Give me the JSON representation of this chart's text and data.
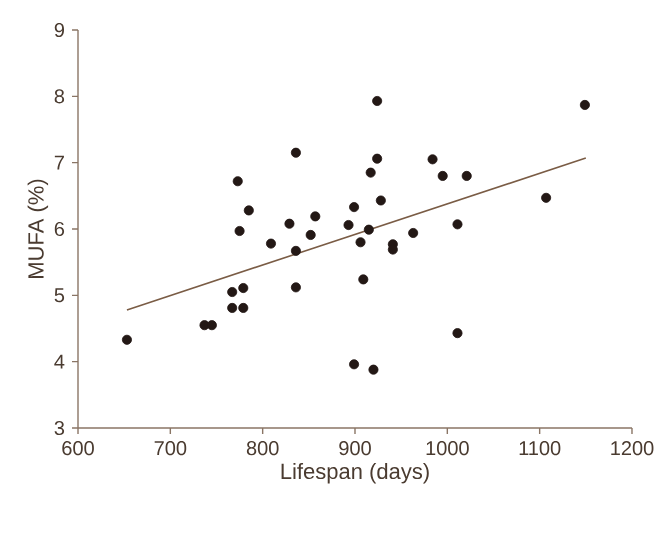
{
  "chart_data": {
    "type": "scatter",
    "xlabel": "Lifespan (days)",
    "ylabel": "MUFA (%)",
    "xlim": [
      600,
      1200
    ],
    "xticks": [
      600,
      700,
      800,
      900,
      1000,
      1100,
      1200
    ],
    "ylim": [
      3,
      9
    ],
    "yticks": [
      3,
      4,
      5,
      6,
      7,
      8,
      9
    ],
    "grid": false,
    "marker": "circle",
    "series": [
      {
        "color": "#231815",
        "x": [
          653,
          737,
          745,
          767,
          779,
          767,
          779,
          773,
          775,
          785,
          809,
          829,
          836,
          836,
          836,
          852,
          857,
          893,
          899,
          906,
          915,
          909,
          899,
          920,
          917,
          924,
          924,
          928,
          941,
          941,
          963,
          984,
          995,
          1021,
          1011,
          1011,
          1107,
          1149
        ],
        "values": [
          4.33,
          4.55,
          4.55,
          5.05,
          5.11,
          4.81,
          4.81,
          6.72,
          5.97,
          6.28,
          5.78,
          6.08,
          7.15,
          5.67,
          5.12,
          5.91,
          6.19,
          6.06,
          6.33,
          5.8,
          5.99,
          5.24,
          3.96,
          3.88,
          6.85,
          7.06,
          7.93,
          6.43,
          5.77,
          5.69,
          5.94,
          7.05,
          6.8,
          6.8,
          6.07,
          4.43,
          6.47,
          7.87
        ]
      },
      {
        "type": "line",
        "color": "#7a5c45",
        "marker": "none",
        "line_style": "solid",
        "x": [
          653,
          1150
        ],
        "values": [
          4.78,
          7.07
        ]
      }
    ]
  }
}
